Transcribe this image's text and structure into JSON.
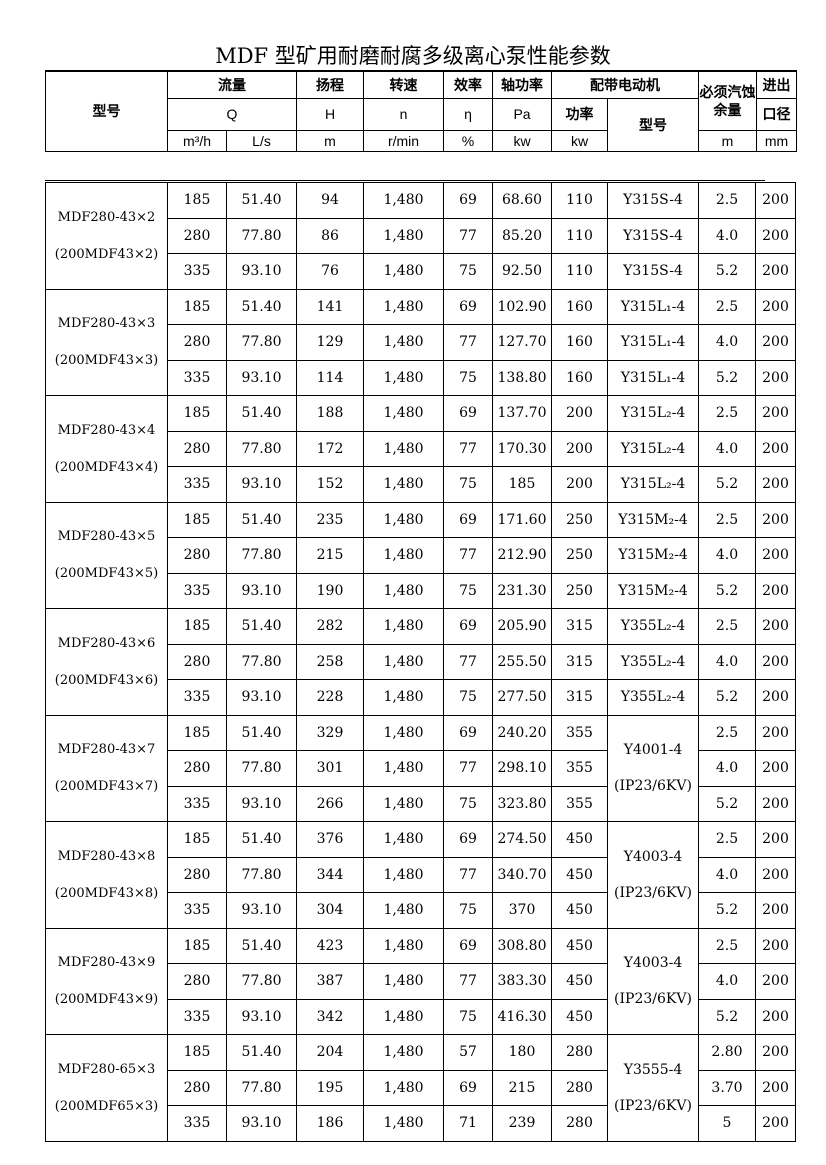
{
  "title": "MDF 型矿用耐磨耐腐多级离心泵性能参数",
  "header": {
    "model": "型号",
    "flow": "流量",
    "flow_sym": "Q",
    "flow_unit1": "m³/h",
    "flow_unit2": "L/s",
    "head": "扬程",
    "head_sym": "H",
    "head_unit": "m",
    "speed": "转速",
    "speed_sym": "n",
    "speed_unit": "r/min",
    "eff": "效率",
    "eff_sym": "η",
    "eff_unit": "%",
    "shaft": "轴功率",
    "shaft_sym": "Pa",
    "shaft_unit": "kw",
    "motor": "配带电动机",
    "motor_power": "功率",
    "motor_power_unit": "kw",
    "motor_model": "型号",
    "npsh": "必须汽蚀余量",
    "npsh_unit": "m",
    "bore1": "进出",
    "bore2": "口径",
    "bore_unit": "mm"
  },
  "groups": [
    {
      "model": "MDF280-43×2",
      "alt": "(200MDF43×2)",
      "motor_merged": false,
      "rows": [
        [
          "185",
          "51.40",
          "94",
          "1,480",
          "69",
          "68.60",
          "110",
          "Y315S-4",
          "2.5",
          "200"
        ],
        [
          "280",
          "77.80",
          "86",
          "1,480",
          "77",
          "85.20",
          "110",
          "Y315S-4",
          "4.0",
          "200"
        ],
        [
          "335",
          "93.10",
          "76",
          "1,480",
          "75",
          "92.50",
          "110",
          "Y315S-4",
          "5.2",
          "200"
        ]
      ]
    },
    {
      "model": "MDF280-43×3",
      "alt": "(200MDF43×3)",
      "motor_merged": false,
      "rows": [
        [
          "185",
          "51.40",
          "141",
          "1,480",
          "69",
          "102.90",
          "160",
          "Y315L₁-4",
          "2.5",
          "200"
        ],
        [
          "280",
          "77.80",
          "129",
          "1,480",
          "77",
          "127.70",
          "160",
          "Y315L₁-4",
          "4.0",
          "200"
        ],
        [
          "335",
          "93.10",
          "114",
          "1,480",
          "75",
          "138.80",
          "160",
          "Y315L₁-4",
          "5.2",
          "200"
        ]
      ]
    },
    {
      "model": "MDF280-43×4",
      "alt": "(200MDF43×4)",
      "motor_merged": false,
      "rows": [
        [
          "185",
          "51.40",
          "188",
          "1,480",
          "69",
          "137.70",
          "200",
          "Y315L₂-4",
          "2.5",
          "200"
        ],
        [
          "280",
          "77.80",
          "172",
          "1,480",
          "77",
          "170.30",
          "200",
          "Y315L₂-4",
          "4.0",
          "200"
        ],
        [
          "335",
          "93.10",
          "152",
          "1,480",
          "75",
          "185",
          "200",
          "Y315L₂-4",
          "5.2",
          "200"
        ]
      ]
    },
    {
      "model": "MDF280-43×5",
      "alt": "(200MDF43×5)",
      "motor_merged": false,
      "rows": [
        [
          "185",
          "51.40",
          "235",
          "1,480",
          "69",
          "171.60",
          "250",
          "Y315M₂-4",
          "2.5",
          "200"
        ],
        [
          "280",
          "77.80",
          "215",
          "1,480",
          "77",
          "212.90",
          "250",
          "Y315M₂-4",
          "4.0",
          "200"
        ],
        [
          "335",
          "93.10",
          "190",
          "1,480",
          "75",
          "231.30",
          "250",
          "Y315M₂-4",
          "5.2",
          "200"
        ]
      ]
    },
    {
      "model": "MDF280-43×6",
      "alt": "(200MDF43×6)",
      "motor_merged": false,
      "rows": [
        [
          "185",
          "51.40",
          "282",
          "1,480",
          "69",
          "205.90",
          "315",
          "Y355L₂-4",
          "2.5",
          "200"
        ],
        [
          "280",
          "77.80",
          "258",
          "1,480",
          "77",
          "255.50",
          "315",
          "Y355L₂-4",
          "4.0",
          "200"
        ],
        [
          "335",
          "93.10",
          "228",
          "1,480",
          "75",
          "277.50",
          "315",
          "Y355L₂-4",
          "5.2",
          "200"
        ]
      ]
    },
    {
      "model": "MDF280-43×7",
      "alt": "(200MDF43×7)",
      "motor_merged": true,
      "motor": "Y4001-4",
      "motor_note": "(IP23/6KV)",
      "rows": [
        [
          "185",
          "51.40",
          "329",
          "1,480",
          "69",
          "240.20",
          "355",
          "",
          "2.5",
          "200"
        ],
        [
          "280",
          "77.80",
          "301",
          "1,480",
          "77",
          "298.10",
          "355",
          "",
          "4.0",
          "200"
        ],
        [
          "335",
          "93.10",
          "266",
          "1,480",
          "75",
          "323.80",
          "355",
          "",
          "5.2",
          "200"
        ]
      ]
    },
    {
      "model": "MDF280-43×8",
      "alt": "(200MDF43×8)",
      "motor_merged": true,
      "motor": "Y4003-4",
      "motor_note": "(IP23/6KV)",
      "rows": [
        [
          "185",
          "51.40",
          "376",
          "1,480",
          "69",
          "274.50",
          "450",
          "",
          "2.5",
          "200"
        ],
        [
          "280",
          "77.80",
          "344",
          "1,480",
          "77",
          "340.70",
          "450",
          "",
          "4.0",
          "200"
        ],
        [
          "335",
          "93.10",
          "304",
          "1,480",
          "75",
          "370",
          "450",
          "",
          "5.2",
          "200"
        ]
      ]
    },
    {
      "model": "MDF280-43×9",
      "alt": "(200MDF43×9)",
      "motor_merged": true,
      "motor": "Y4003-4",
      "motor_note": "(IP23/6KV)",
      "rows": [
        [
          "185",
          "51.40",
          "423",
          "1,480",
          "69",
          "308.80",
          "450",
          "",
          "2.5",
          "200"
        ],
        [
          "280",
          "77.80",
          "387",
          "1,480",
          "77",
          "383.30",
          "450",
          "",
          "4.0",
          "200"
        ],
        [
          "335",
          "93.10",
          "342",
          "1,480",
          "75",
          "416.30",
          "450",
          "",
          "5.2",
          "200"
        ]
      ]
    },
    {
      "model": "MDF280-65×3",
      "alt": "(200MDF65×3)",
      "motor_merged": true,
      "motor": "Y3555-4",
      "motor_note": "(IP23/6KV)",
      "rows": [
        [
          "185",
          "51.40",
          "204",
          "1,480",
          "57",
          "180",
          "280",
          "",
          "2.80",
          "200"
        ],
        [
          "280",
          "77.80",
          "195",
          "1,480",
          "69",
          "215",
          "280",
          "",
          "3.70",
          "200"
        ],
        [
          "335",
          "93.10",
          "186",
          "1,480",
          "71",
          "239",
          "280",
          "",
          "5",
          "200"
        ]
      ]
    }
  ]
}
